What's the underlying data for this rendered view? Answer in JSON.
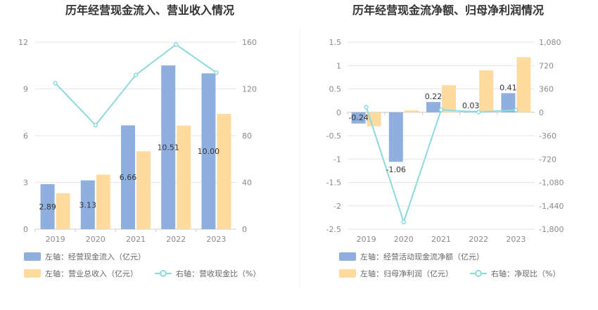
{
  "chart_data": [
    {
      "type": "bar",
      "title": "历年经营现金流入、营业收入情况",
      "categories": [
        "2019",
        "2020",
        "2021",
        "2022",
        "2023"
      ],
      "left_axis": {
        "ylim": [
          0,
          12
        ],
        "ticks": [
          "0",
          "3",
          "6",
          "9",
          "12"
        ]
      },
      "right_axis": {
        "ylim": [
          0,
          160
        ],
        "ticks": [
          "0",
          "40",
          "80",
          "120",
          "160"
        ]
      },
      "series": [
        {
          "name": "左轴：经营现金流入（亿元）",
          "axis": "left",
          "kind": "bar",
          "color": "#8fb0de",
          "values": [
            2.89,
            3.13,
            6.66,
            10.51,
            10.0
          ],
          "labels": [
            "2.89",
            "3.13",
            "6.66",
            "10.51",
            "10.00"
          ]
        },
        {
          "name": "左轴：营业总收入（亿元）",
          "axis": "left",
          "kind": "bar",
          "color": "#ffdba0",
          "values": [
            2.3,
            3.5,
            5.0,
            6.65,
            7.4
          ]
        },
        {
          "name": "右轴：营收现金比（%）",
          "axis": "right",
          "kind": "line",
          "color": "#8dd9de",
          "values": [
            125,
            89,
            132,
            158,
            134
          ]
        }
      ],
      "grid": true,
      "legend": "bottom"
    },
    {
      "type": "bar",
      "title": "历年经营现金流净额、归母净利润情况",
      "categories": [
        "2019",
        "2020",
        "2021",
        "2022",
        "2023"
      ],
      "left_axis": {
        "ylim": [
          -2.5,
          1.5
        ],
        "ticks": [
          "-2.5",
          "-2",
          "-1.5",
          "-1",
          "-0.5",
          "0",
          "0.5",
          "1",
          "1.5"
        ]
      },
      "right_axis": {
        "ylim": [
          -1800,
          1080
        ],
        "ticks": [
          "-1,800",
          "-1,440",
          "-1,080",
          "-720",
          "-360",
          "0",
          "360",
          "720",
          "1,080"
        ]
      },
      "series": [
        {
          "name": "左轴：经营活动现金流净额（亿元）",
          "axis": "left",
          "kind": "bar",
          "color": "#8fb0de",
          "values": [
            -0.24,
            -1.06,
            0.22,
            0.03,
            0.41
          ],
          "labels": [
            "-0.24",
            "-1.06",
            "0.22",
            "0.03",
            "0.41"
          ]
        },
        {
          "name": "左轴：归母净利润（亿元）",
          "axis": "left",
          "kind": "bar",
          "color": "#ffdba0",
          "values": [
            -0.3,
            0.04,
            0.58,
            0.9,
            1.18
          ]
        },
        {
          "name": "右轴：净现比（%）",
          "axis": "right",
          "kind": "line",
          "color": "#8dd9de",
          "values": [
            80,
            -1690,
            38,
            3,
            35
          ]
        }
      ],
      "grid": true,
      "legend": "bottom"
    }
  ]
}
